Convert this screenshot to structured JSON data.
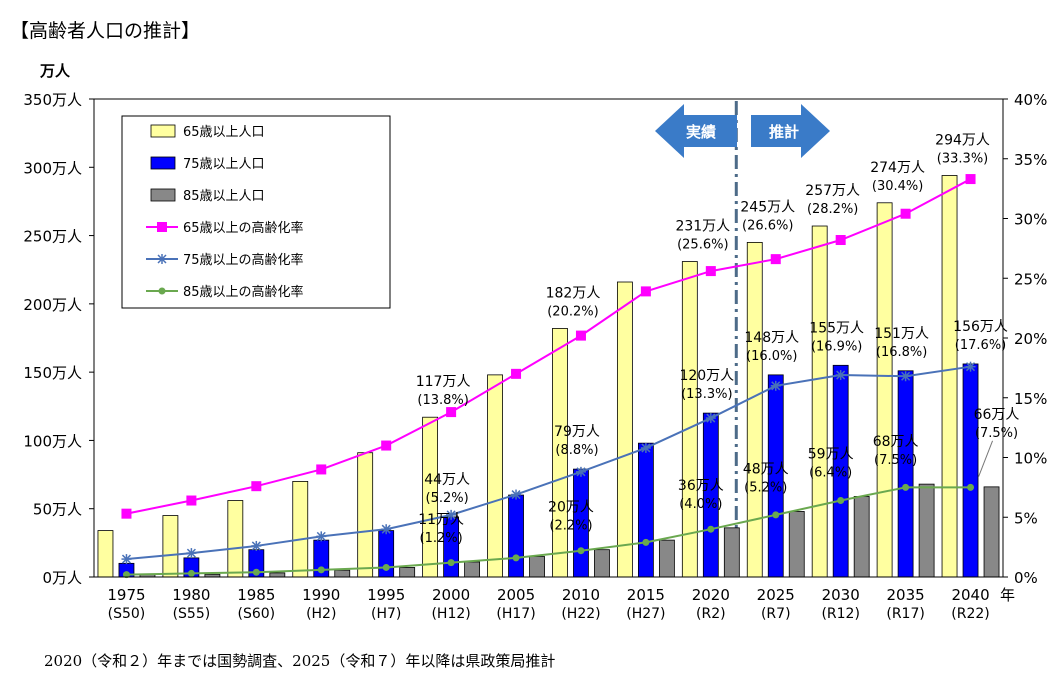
{
  "page": {
    "title": "【高齢者人口の推計】",
    "footnote": "2020（令和２）年までは国勢調査、2025（令和７）年以降は県政策局推計"
  },
  "phase_labels": {
    "actual": "実績",
    "projection": "推計"
  },
  "colors": {
    "pop65": "#ffffa0",
    "pop75": "#0000ff",
    "pop85": "#888888",
    "rate65": "#ff00ff",
    "rate75": "#4a72b8",
    "rate85": "#6aa84f",
    "arrow": "#3a7bc8",
    "divider": "#4d6b88"
  },
  "chart_data": {
    "type": "bar",
    "ylabel": "万人",
    "xlabel": "年",
    "ylim": [
      0,
      350
    ],
    "y2lim": [
      0,
      40
    ],
    "left_ticks": [
      "0万人",
      "50万人",
      "100万人",
      "150万人",
      "200万人",
      "250万人",
      "300万人",
      "350万人"
    ],
    "right_ticks": [
      "0%",
      "5%",
      "10%",
      "15%",
      "20%",
      "25%",
      "30%",
      "35%",
      "40%"
    ],
    "categories": [
      "1975",
      "1980",
      "1985",
      "1990",
      "1995",
      "2000",
      "2005",
      "2010",
      "2015",
      "2020",
      "2025",
      "2030",
      "2035",
      "2040"
    ],
    "era_labels": [
      "(S50)",
      "(S55)",
      "(S60)",
      "(H2)",
      "(H7)",
      "(H12)",
      "(H17)",
      "(H22)",
      "(H27)",
      "(R2)",
      "(R7)",
      "(R12)",
      "(R17)",
      "(R22)"
    ],
    "legend": [
      {
        "name": "65歳以上人口",
        "kind": "bar",
        "color": "#ffffa0"
      },
      {
        "name": "75歳以上人口",
        "kind": "bar",
        "color": "#0000ff"
      },
      {
        "name": "85歳以上人口",
        "kind": "bar",
        "color": "#888888"
      },
      {
        "name": "65歳以上の高齢化率",
        "kind": "line",
        "marker": "square",
        "color": "#ff00ff"
      },
      {
        "name": "75歳以上の高齢化率",
        "kind": "line",
        "marker": "star",
        "color": "#4a72b8"
      },
      {
        "name": "85歳以上の高齢化率",
        "kind": "line",
        "marker": "circle",
        "color": "#6aa84f"
      }
    ],
    "series": [
      {
        "name": "65歳以上人口",
        "axis": "left",
        "values": [
          34,
          45,
          56,
          70,
          91,
          117,
          148,
          182,
          216,
          231,
          245,
          257,
          274,
          294
        ]
      },
      {
        "name": "75歳以上人口",
        "axis": "left",
        "values": [
          10,
          14,
          20,
          27,
          34,
          44,
          60,
          79,
          98,
          120,
          148,
          155,
          151,
          156
        ]
      },
      {
        "name": "85歳以上人口",
        "axis": "left",
        "values": [
          2,
          2,
          3,
          5,
          7,
          11,
          15,
          20,
          27,
          36,
          48,
          59,
          68,
          66
        ]
      },
      {
        "name": "65歳以上の高齢化率",
        "axis": "right",
        "values": [
          5.3,
          6.4,
          7.6,
          9.0,
          11.0,
          13.8,
          17.0,
          20.2,
          23.9,
          25.6,
          26.6,
          28.2,
          30.4,
          33.3
        ]
      },
      {
        "name": "75歳以上の高齢化率",
        "axis": "right",
        "values": [
          1.5,
          2.0,
          2.6,
          3.4,
          4.0,
          5.2,
          6.9,
          8.8,
          10.8,
          13.3,
          16.0,
          16.9,
          16.8,
          17.6
        ]
      },
      {
        "name": "85歳以上の高齢化率",
        "axis": "right",
        "values": [
          0.2,
          0.3,
          0.4,
          0.6,
          0.8,
          1.2,
          1.6,
          2.2,
          2.9,
          4.0,
          5.2,
          6.4,
          7.5,
          7.5
        ]
      }
    ],
    "annotations": [
      {
        "series": "pop65",
        "index": 5,
        "line1": "117万人",
        "line2": "(13.8%)"
      },
      {
        "series": "pop65",
        "index": 7,
        "line1": "182万人",
        "line2": "(20.2%)"
      },
      {
        "series": "pop65",
        "index": 9,
        "line1": "231万人",
        "line2": "(25.6%)"
      },
      {
        "series": "pop65",
        "index": 10,
        "line1": "245万人",
        "line2": "(26.6%)"
      },
      {
        "series": "pop65",
        "index": 11,
        "line1": "257万人",
        "line2": "(28.2%)"
      },
      {
        "series": "pop65",
        "index": 12,
        "line1": "274万人",
        "line2": "(30.4%)"
      },
      {
        "series": "pop65",
        "index": 13,
        "line1": "294万人",
        "line2": "(33.3%)"
      },
      {
        "series": "pop75",
        "index": 5,
        "line1": "44万人",
        "line2": "(5.2%)"
      },
      {
        "series": "pop75",
        "index": 7,
        "line1": "79万人",
        "line2": "(8.8%)"
      },
      {
        "series": "pop75",
        "index": 9,
        "line1": "120万人",
        "line2": "(13.3%)"
      },
      {
        "series": "pop75",
        "index": 10,
        "line1": "148万人",
        "line2": "(16.0%)"
      },
      {
        "series": "pop75",
        "index": 11,
        "line1": "155万人",
        "line2": "(16.9%)"
      },
      {
        "series": "pop75",
        "index": 12,
        "line1": "151万人",
        "line2": "(16.8%)"
      },
      {
        "series": "pop75",
        "index": 13,
        "line1": "156万人",
        "line2": "(17.6%)"
      },
      {
        "series": "pop85",
        "index": 5,
        "line1": "11万人",
        "line2": "(1.2%)"
      },
      {
        "series": "pop85",
        "index": 7,
        "line1": "20万人",
        "line2": "(2.2%)"
      },
      {
        "series": "pop85",
        "index": 9,
        "line1": "36万人",
        "line2": "(4.0%)"
      },
      {
        "series": "pop85",
        "index": 10,
        "line1": "48万人",
        "line2": "(5.2%)"
      },
      {
        "series": "pop85",
        "index": 11,
        "line1": "59万人",
        "line2": "(6.4%)"
      },
      {
        "series": "pop85",
        "index": 12,
        "line1": "68万人",
        "line2": "(7.5%)"
      },
      {
        "series": "pop85",
        "index": 13,
        "line1": "66万人",
        "line2": "(7.5%)"
      }
    ]
  }
}
